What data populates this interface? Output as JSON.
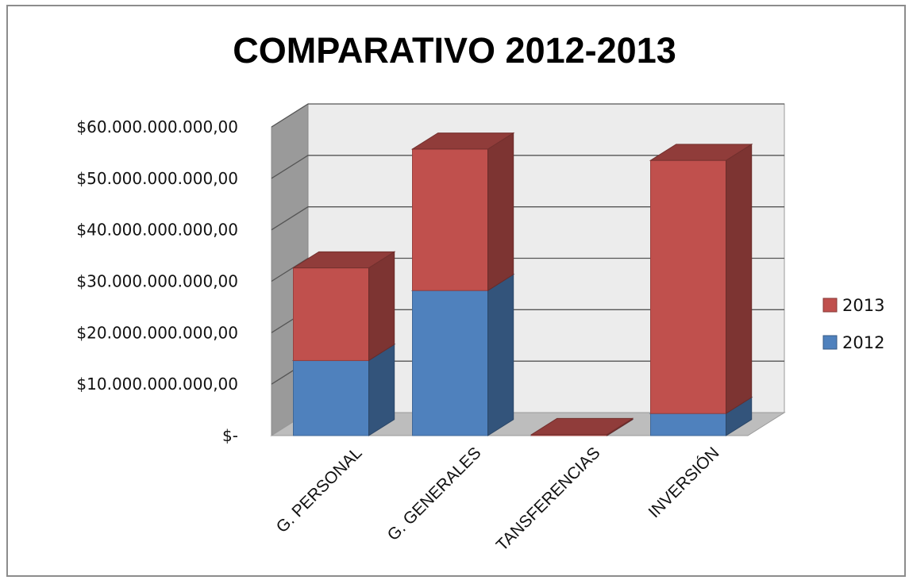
{
  "chart_data": {
    "type": "bar",
    "stacked": true,
    "three_d": true,
    "title": "COMPARATIVO 2012-2013",
    "categories": [
      "G. PERSONAL",
      "G. GENERALES",
      "TANSFERENCIAS",
      "INVERSIÓN"
    ],
    "series": [
      {
        "name": "2012",
        "values": [
          14600000000,
          28200000000,
          0,
          4300000000
        ],
        "color": "#4f81bd"
      },
      {
        "name": "2013",
        "values": [
          18000000000,
          27500000000,
          200000000,
          49200000000
        ],
        "color": "#c0504d"
      }
    ],
    "ylim": [
      0,
      60000000000
    ],
    "y_ticks": [
      0,
      10000000000,
      20000000000,
      30000000000,
      40000000000,
      50000000000,
      60000000000
    ],
    "y_tick_labels": [
      "$-",
      "$10.000.000.000,00",
      "$20.000.000.000,00",
      "$30.000.000.000,00",
      "$40.000.000.000,00",
      "$50.000.000.000,00",
      "$60.000.000.000,00"
    ],
    "legend_position": "right",
    "legend_order": [
      "2013",
      "2012"
    ],
    "grid": true,
    "xlabel": "",
    "ylabel": ""
  }
}
